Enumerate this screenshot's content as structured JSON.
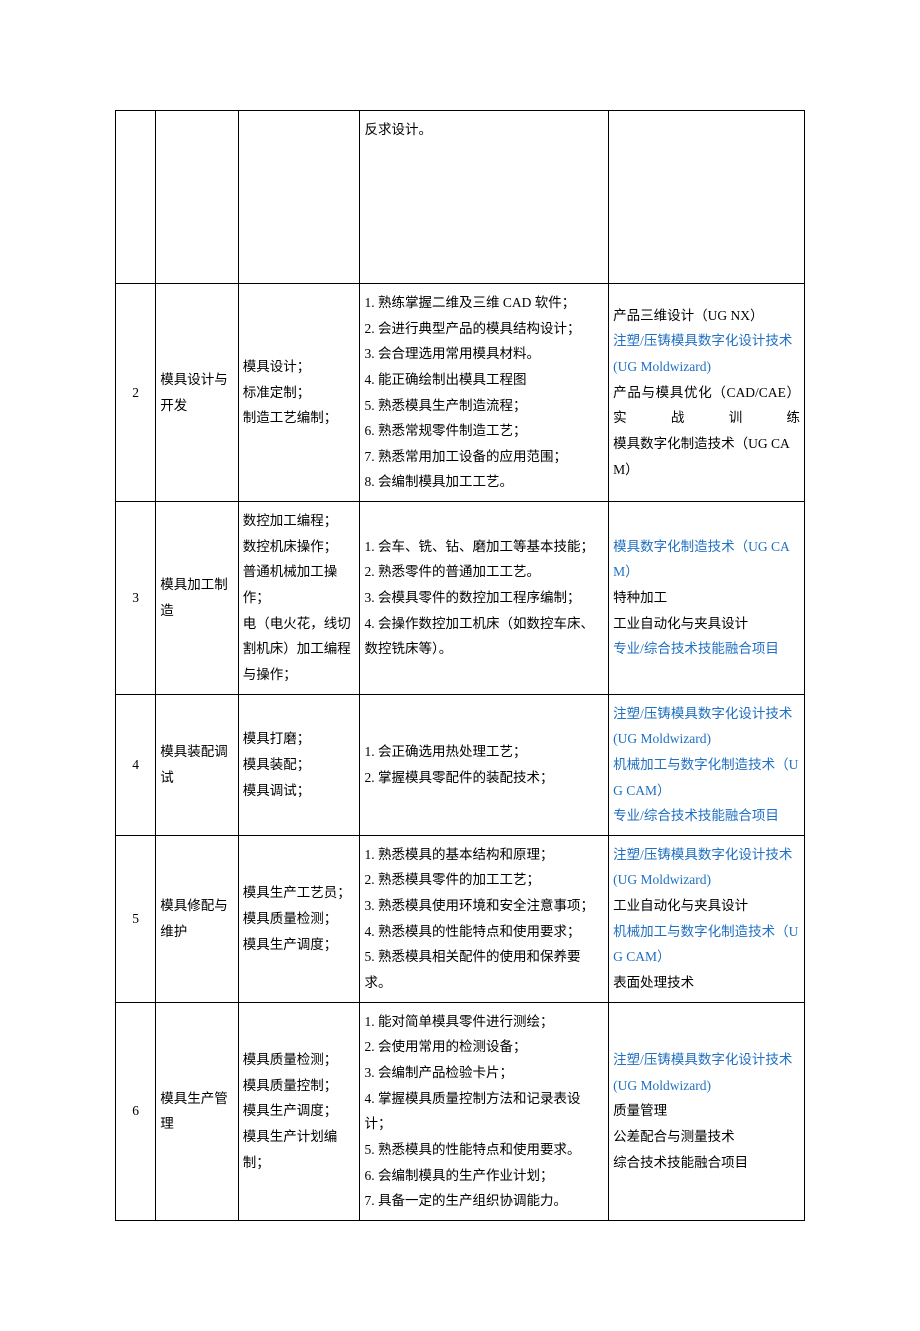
{
  "table": {
    "columns": {
      "num_width": 38,
      "name_width": 78,
      "post_width": 115,
      "req_width": 235,
      "course_width": 185
    },
    "border_color": "#000000",
    "font_family": "SimSun",
    "font_size": 13.5,
    "line_height": 1.9,
    "link_color": "#1f6fc2",
    "text_color": "#000000",
    "background_color": "#ffffff",
    "rows": [
      {
        "num": "",
        "name": "",
        "post": "",
        "req": "反求设计。",
        "course": ""
      },
      {
        "num": "2",
        "name": "模具设计与开发",
        "post": "模具设计；\n标准定制；\n制造工艺编制；",
        "req": "1. 熟练掌握二维及三维 CAD 软件；\n2. 会进行典型产品的模具结构设计；\n3. 会合理选用常用模具材料。\n4. 能正确绘制出模具工程图\n5. 熟悉模具生产制造流程；\n6. 熟悉常规零件制造工艺；\n7. 熟悉常用加工设备的应用范围；\n8. 会编制模具加工工艺。",
        "course_lines": [
          {
            "text": "产品三维设计（UG NX）",
            "blue": false
          },
          {
            "text": "注塑/压铸模具数字化设计技术(UG Moldwizard)",
            "blue": true
          },
          {
            "text": "产品与模具优化（CAD/CAE）实战训练",
            "blue": false,
            "justify": true
          },
          {
            "text": "模具数字化制造技术（UG CAM）",
            "blue": false
          }
        ]
      },
      {
        "num": "3",
        "name": "模具加工制造",
        "post": "数控加工编程；\n数控机床操作；\n普通机械加工操作；\n电（电火花，线切割机床）加工编程与操作；",
        "req": "1. 会车、铣、钻、磨加工等基本技能；\n2. 熟悉零件的普通加工工艺。\n3. 会模具零件的数控加工程序编制；\n4. 会操作数控加工机床（如数控车床、数控铣床等）。",
        "course_lines": [
          {
            "text": "模具数字化制造技术（UG CAM）",
            "blue": true
          },
          {
            "text": "特种加工",
            "blue": false
          },
          {
            "text": "工业自动化与夹具设计",
            "blue": false
          },
          {
            "text": "专业/综合技术技能融合项目",
            "blue": true
          }
        ]
      },
      {
        "num": "4",
        "name": "模具装配调试",
        "post": "模具打磨；\n模具装配；\n模具调试；",
        "req": "1. 会正确选用热处理工艺；\n2. 掌握模具零配件的装配技术；",
        "course_lines": [
          {
            "text": "注塑/压铸模具数字化设计技术(UG Moldwizard)",
            "blue": true
          },
          {
            "text": "机械加工与数字化制造技术（UG CAM）",
            "blue": true
          },
          {
            "text": "专业/综合技术技能融合项目",
            "blue": true
          }
        ]
      },
      {
        "num": "5",
        "name": "模具修配与维护",
        "post": "模具生产工艺员；\n模具质量检测；\n模具生产调度；",
        "req": "1. 熟悉模具的基本结构和原理；\n2. 熟悉模具零件的加工工艺；\n3. 熟悉模具使用环境和安全注意事项；\n4. 熟悉模具的性能特点和使用要求；\n5. 熟悉模具相关配件的使用和保养要求。",
        "course_lines": [
          {
            "text": "注塑/压铸模具数字化设计技术(UG Moldwizard)",
            "blue": true
          },
          {
            "text": "工业自动化与夹具设计",
            "blue": false
          },
          {
            "text": "机械加工与数字化制造技术（UG CAM）",
            "blue": true
          },
          {
            "text": "表面处理技术",
            "blue": false
          }
        ]
      },
      {
        "num": "6",
        "name": "模具生产管理",
        "post": "模具质量检测；\n模具质量控制；\n模具生产调度；\n模具生产计划编制；",
        "req": "1. 能对简单模具零件进行测绘；\n2. 会使用常用的检测设备；\n3. 会编制产品检验卡片；\n4. 掌握模具质量控制方法和记录表设计；\n5. 熟悉模具的性能特点和使用要求。\n6. 会编制模具的生产作业计划；\n7. 具备一定的生产组织协调能力。",
        "course_lines": [
          {
            "text": "注塑/压铸模具数字化设计技术(UG Moldwizard)",
            "blue": true
          },
          {
            "text": "质量管理",
            "blue": false
          },
          {
            "text": "公差配合与测量技术",
            "blue": false
          },
          {
            "text": "综合技术技能融合项目",
            "blue": false
          }
        ]
      }
    ]
  }
}
